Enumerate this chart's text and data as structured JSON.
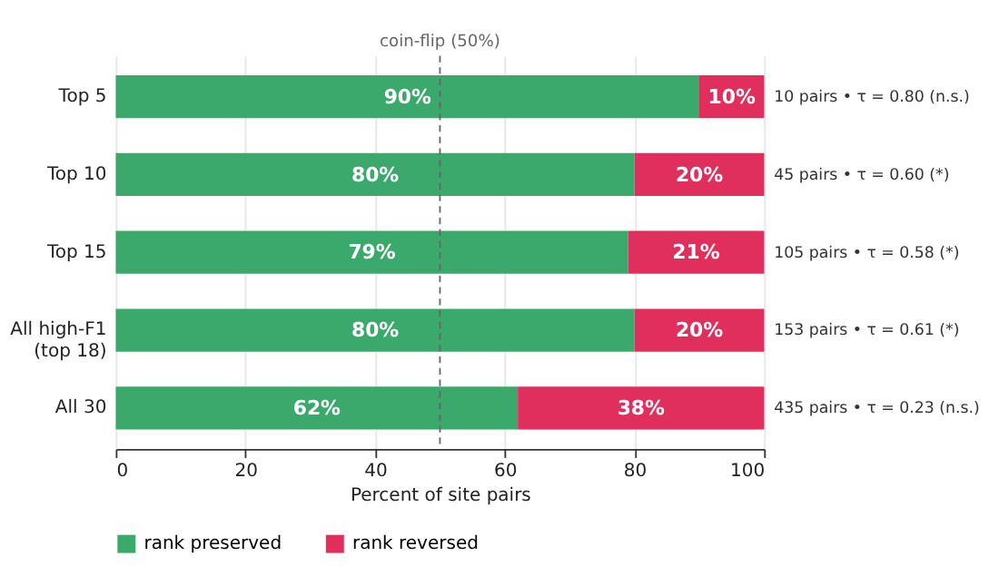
{
  "chart_data": {
    "type": "bar",
    "orientation": "horizontal",
    "stacked": true,
    "xlabel": "Percent of site pairs",
    "categories": [
      "Top 5",
      "Top 10",
      "Top 15",
      "All high-F1\n(top 18)",
      "All 30"
    ],
    "series": [
      {
        "name": "rank preserved",
        "color": "#3aa96b",
        "values": [
          90,
          80,
          79,
          80,
          62
        ],
        "value_labels": [
          "90%",
          "80%",
          "79%",
          "80%",
          "62%"
        ]
      },
      {
        "name": "rank reversed",
        "color": "#e02f5c",
        "values": [
          10,
          20,
          21,
          20,
          38
        ],
        "value_labels": [
          "10%",
          "20%",
          "21%",
          "20%",
          "38%"
        ]
      }
    ],
    "xlim": [
      0,
      100
    ],
    "xticks": [
      0,
      20,
      40,
      60,
      80,
      100
    ],
    "grid": "x",
    "legend": "bottom",
    "ref_lines": [
      {
        "axis": "x",
        "value": 50,
        "label": "coin-flip (50%)",
        "color": "#666666",
        "line_style": "dashed"
      }
    ],
    "annotations": [
      "10 pairs  •  τ = 0.80 (n.s.)",
      "45 pairs  •  τ = 0.60 (*)",
      "105 pairs  •  τ = 0.58 (*)",
      "153 pairs  •  τ = 0.61 (*)",
      "435 pairs  •  τ = 0.23 (n.s.)"
    ]
  }
}
